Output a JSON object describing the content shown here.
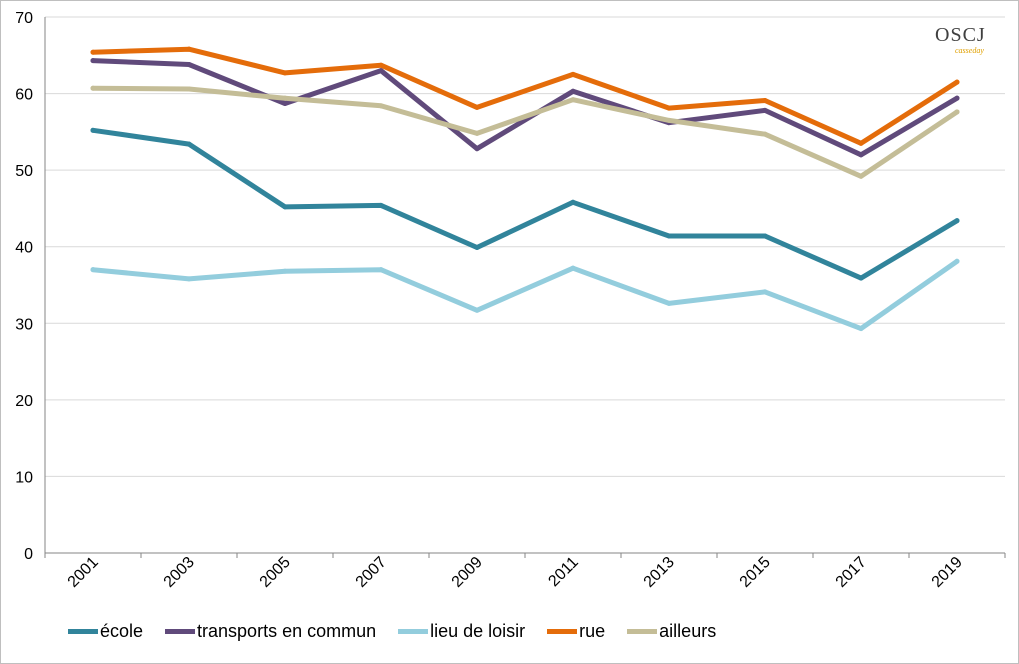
{
  "logo": {
    "main": "OSCJ",
    "sub": "casseday"
  },
  "chart_data": {
    "type": "line",
    "title": "",
    "xlabel": "",
    "ylabel": "",
    "x": [
      "2001",
      "2003",
      "2005",
      "2007",
      "2009",
      "2011",
      "2013",
      "2015",
      "2017",
      "2019"
    ],
    "ylim": [
      0,
      70
    ],
    "yticks": [
      0,
      10,
      20,
      30,
      40,
      50,
      60,
      70
    ],
    "grid": true,
    "legend_position": "bottom",
    "series": [
      {
        "name": "école",
        "color": "#31849b",
        "values": [
          55.2,
          53.4,
          45.2,
          45.4,
          39.9,
          45.8,
          41.4,
          41.4,
          35.9,
          43.4
        ]
      },
      {
        "name": "transports en commun",
        "color": "#604a7b",
        "values": [
          64.3,
          63.8,
          58.7,
          63.0,
          52.8,
          60.3,
          56.2,
          57.8,
          52.0,
          59.4
        ]
      },
      {
        "name": "lieu de loisir",
        "color": "#93cddd",
        "values": [
          37.0,
          35.8,
          36.8,
          37.0,
          31.7,
          37.2,
          32.6,
          34.1,
          29.3,
          38.1
        ]
      },
      {
        "name": "rue",
        "color": "#e46c0a",
        "values": [
          65.4,
          65.8,
          62.7,
          63.7,
          58.2,
          62.5,
          58.1,
          59.1,
          53.5,
          61.5
        ]
      },
      {
        "name": "ailleurs",
        "color": "#c4bd97",
        "values": [
          60.7,
          60.6,
          59.4,
          58.4,
          54.8,
          59.2,
          56.5,
          54.7,
          49.2,
          57.6
        ]
      }
    ]
  }
}
